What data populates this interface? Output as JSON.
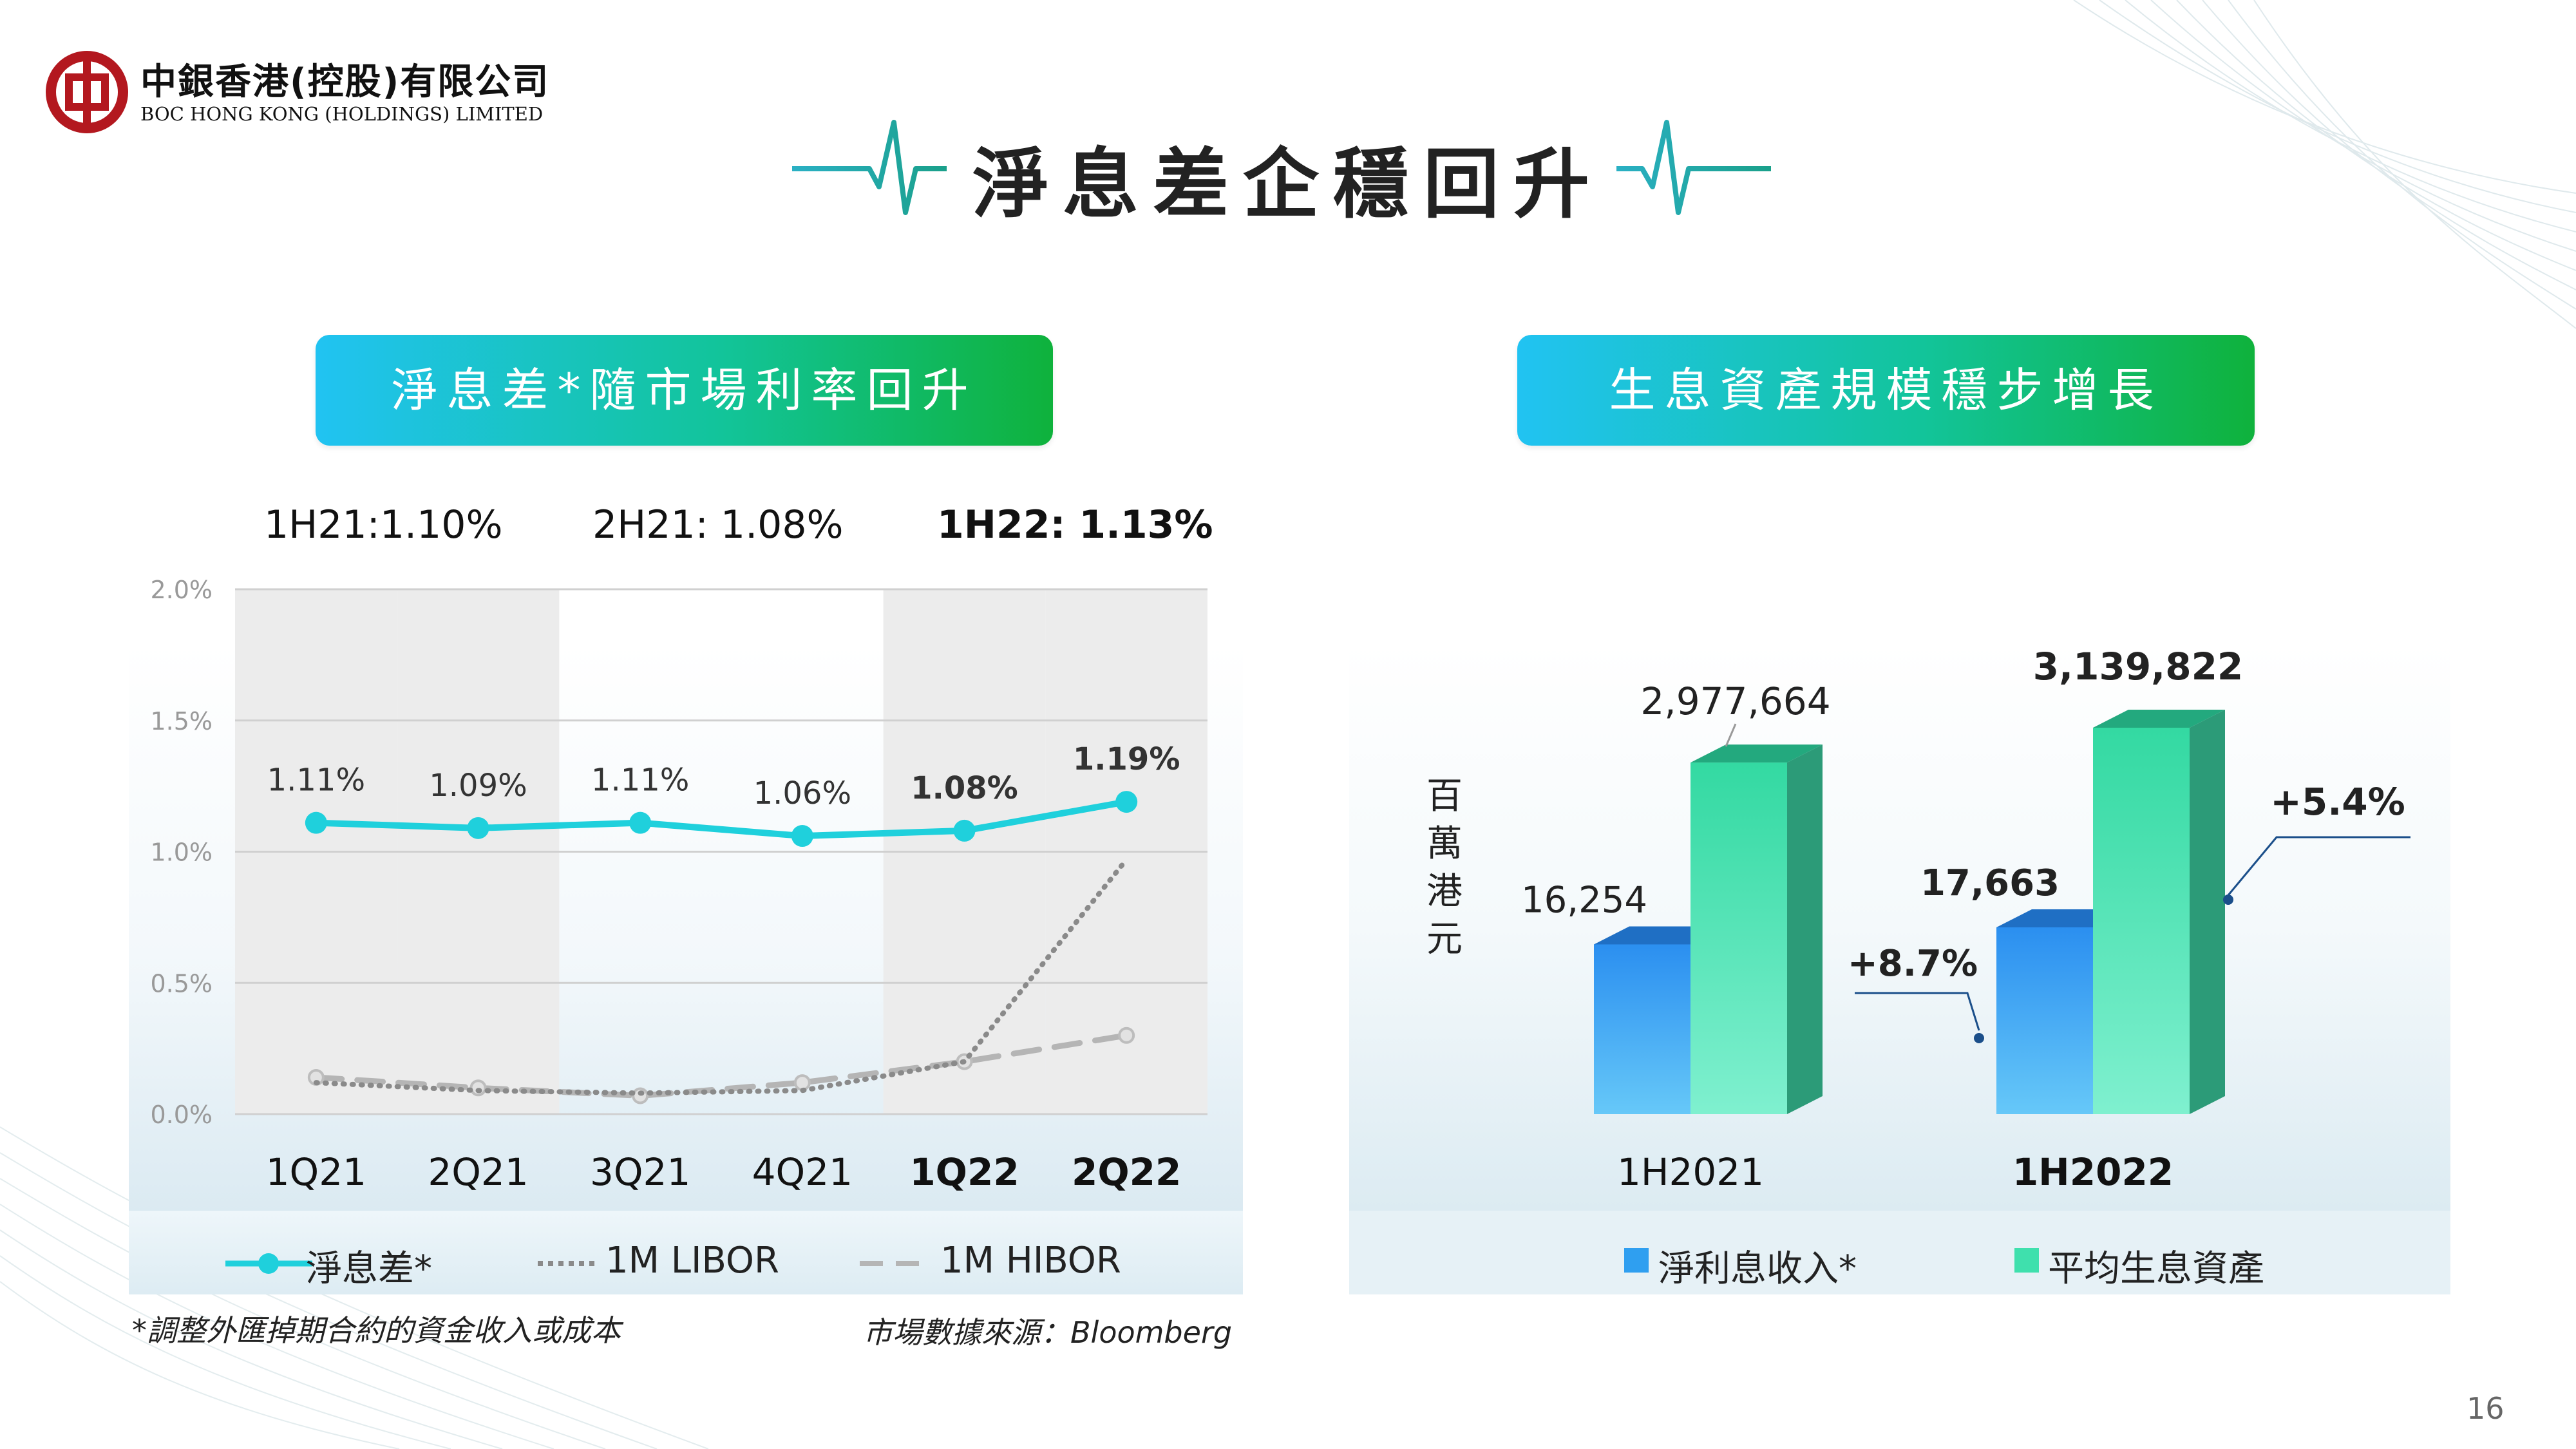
{
  "logo": {
    "name_cn": "中銀香港(控股)有限公司",
    "name_en": "BOC HONG KONG (HOLDINGS) LIMITED"
  },
  "page_title": "淨息差企穩回升",
  "left_section": {
    "banner": "淨息差*隨市場利率回升",
    "periods": [
      "1H21:1.10%",
      "2H21: 1.08%",
      "1H22: 1.13%"
    ],
    "footnote": "*調整外匯掉期合約的資金收入或成本",
    "source": "市場數據來源：Bloomberg"
  },
  "right_section": {
    "banner": "生息資產規模穩步增長",
    "unit": "百萬港元"
  },
  "page_number": "16",
  "colors": {
    "nim_line": "#1fd0dc",
    "libor": "#8a8a8a",
    "hibor": "#b5b5b5",
    "nii_bar": "#2f9ff0",
    "assets_bar": "#3fe0ad",
    "banner_start": "#21c3f2",
    "banner_end": "#0fb23c",
    "logo_red": "#b3181f"
  },
  "chart_data": [
    {
      "type": "line",
      "categories": [
        "1Q21",
        "2Q21",
        "3Q21",
        "4Q21",
        "1Q22",
        "2Q22"
      ],
      "bold_categories": [
        "1Q22",
        "2Q22"
      ],
      "ylim": [
        0,
        2.0
      ],
      "yticks": [
        "0.0%",
        "0.5%",
        "1.0%",
        "1.5%",
        "2.0%"
      ],
      "grid": true,
      "legend_position": "bottom",
      "series": [
        {
          "name": "淨息差*",
          "values": [
            1.11,
            1.09,
            1.11,
            1.06,
            1.08,
            1.19
          ],
          "labels": [
            "1.11%",
            "1.09%",
            "1.11%",
            "1.06%",
            "1.08%",
            "1.19%"
          ],
          "style": "solid"
        },
        {
          "name": "1M LIBOR",
          "values": [
            0.12,
            0.09,
            0.08,
            0.09,
            0.2,
            0.97
          ],
          "style": "dotted"
        },
        {
          "name": "1M HIBOR",
          "values": [
            0.14,
            0.1,
            0.07,
            0.12,
            0.2,
            0.3
          ],
          "style": "dashed"
        }
      ]
    },
    {
      "type": "bar",
      "categories": [
        "1H2021",
        "1H2022"
      ],
      "bold_categories": [
        "1H2022"
      ],
      "legend_position": "bottom",
      "series": [
        {
          "name": "淨利息收入*",
          "values": [
            16254,
            17663
          ],
          "labels": [
            "16,254",
            "17,663"
          ]
        },
        {
          "name": "平均生息資產",
          "values": [
            2977664,
            3139822
          ],
          "labels": [
            "2,977,664",
            "3,139,822"
          ]
        }
      ],
      "annotations": [
        "+8.7%",
        "+5.4%"
      ]
    }
  ]
}
